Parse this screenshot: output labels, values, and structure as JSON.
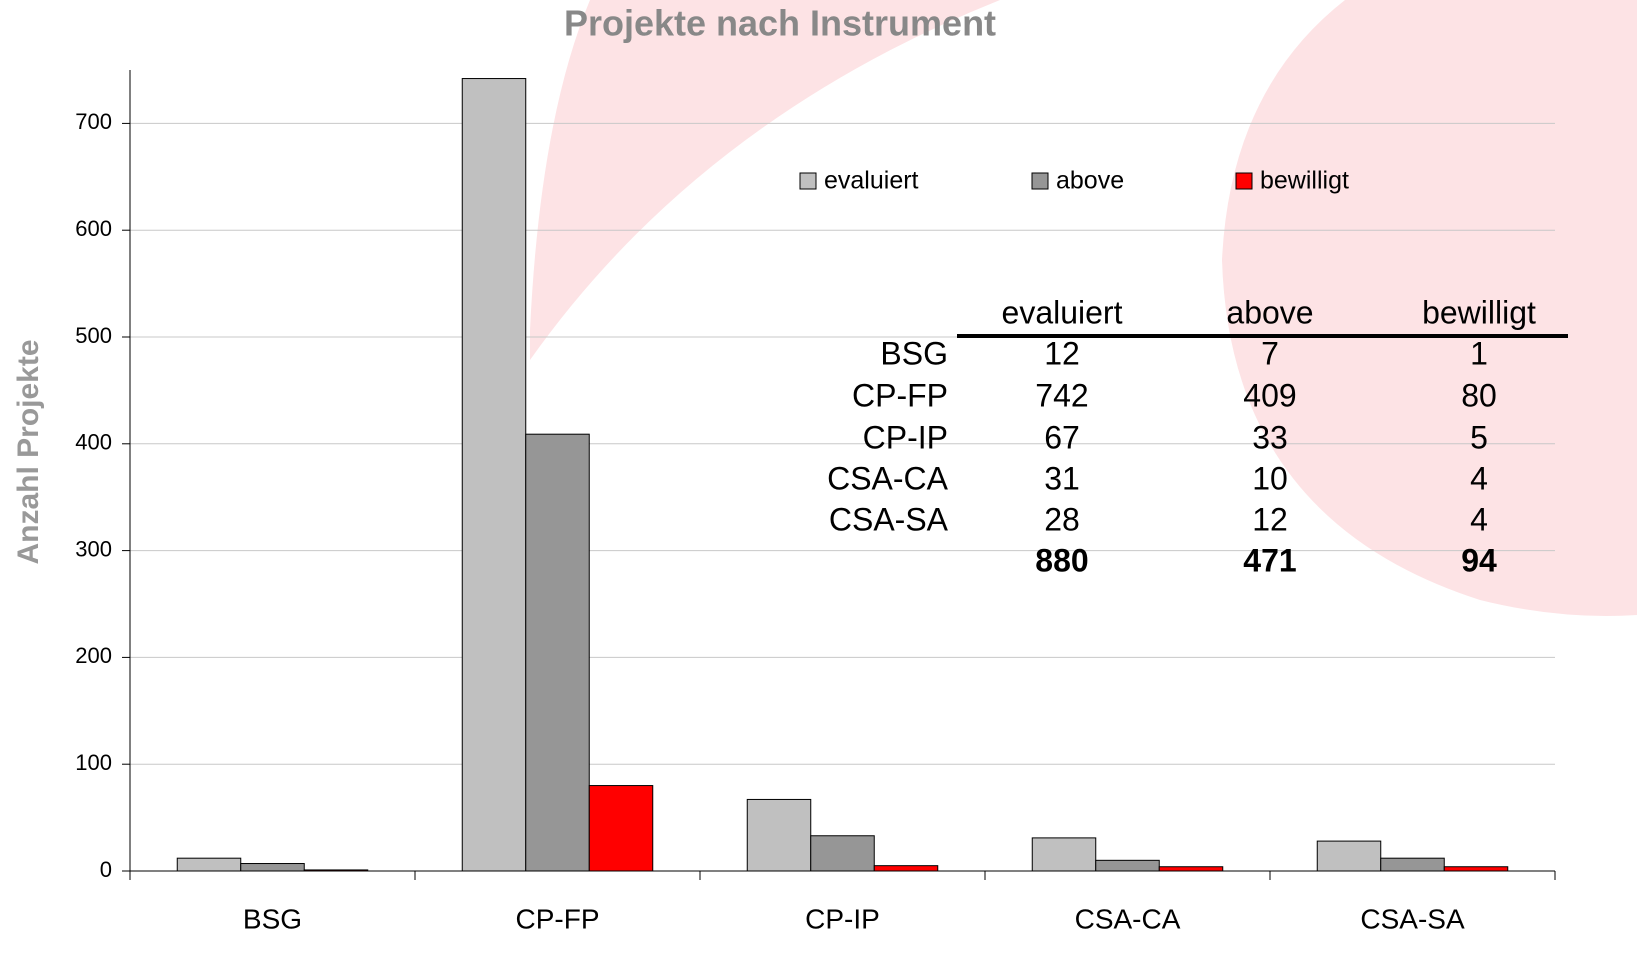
{
  "chart_data": {
    "type": "bar",
    "title": "Projekte nach Instrument",
    "ylabel": "Anzahl Projekte",
    "categories": [
      "BSG",
      "CP-FP",
      "CP-IP",
      "CSA-CA",
      "CSA-SA"
    ],
    "series": [
      {
        "name": "evaluiert",
        "color": "#c0c0c0",
        "values": [
          12,
          742,
          67,
          31,
          28
        ]
      },
      {
        "name": "above",
        "color": "#969696",
        "values": [
          7,
          409,
          33,
          10,
          12
        ]
      },
      {
        "name": "bewilligt",
        "color": "#ff0000",
        "values": [
          1,
          80,
          5,
          4,
          4
        ]
      }
    ],
    "ylim": [
      0,
      750
    ],
    "yticks": [
      0,
      100,
      200,
      300,
      400,
      500,
      600,
      700
    ],
    "grid": true,
    "legend": "top"
  },
  "table": {
    "columns": [
      "evaluiert",
      "above",
      "bewilligt"
    ],
    "rows": [
      {
        "label": "BSG",
        "values": [
          12,
          7,
          1
        ]
      },
      {
        "label": "CP-FP",
        "values": [
          742,
          409,
          80
        ]
      },
      {
        "label": "CP-IP",
        "values": [
          67,
          33,
          5
        ]
      },
      {
        "label": "CSA-CA",
        "values": [
          31,
          10,
          4
        ]
      },
      {
        "label": "CSA-SA",
        "values": [
          28,
          12,
          4
        ]
      }
    ],
    "totals": [
      880,
      471,
      94
    ]
  }
}
